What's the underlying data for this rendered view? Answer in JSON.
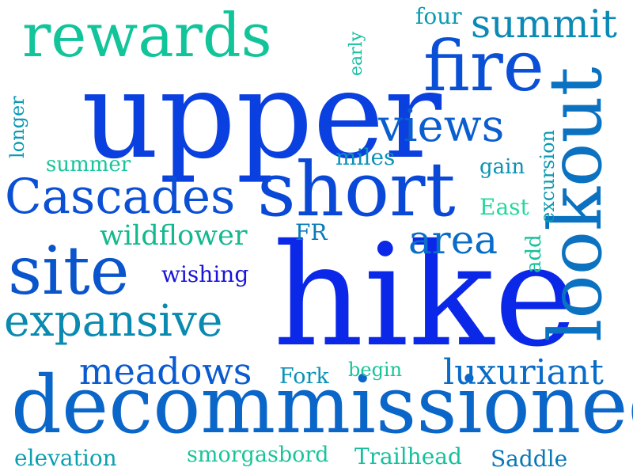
{
  "word_cloud": {
    "words": [
      {
        "text": "upper",
        "color": "#0a3fe0"
      },
      {
        "text": "hike",
        "color": "#0b28e8"
      },
      {
        "text": "decommissioned",
        "color": "#0a66c8"
      },
      {
        "text": "short",
        "color": "#0a48d8"
      },
      {
        "text": "lookout",
        "color": "#0a72c0"
      },
      {
        "text": "rewards",
        "color": "#12c49a"
      },
      {
        "text": "fire",
        "color": "#0a50d6"
      },
      {
        "text": "site",
        "color": "#0a55cc"
      },
      {
        "text": "Cascades",
        "color": "#0a4fd4"
      },
      {
        "text": "expansive",
        "color": "#0a8ab0"
      },
      {
        "text": "views",
        "color": "#0a5ed0"
      },
      {
        "text": "summit",
        "color": "#0a8ab5"
      },
      {
        "text": "area",
        "color": "#0a6ec8"
      },
      {
        "text": "meadows",
        "color": "#0a5ad0"
      },
      {
        "text": "luxuriant",
        "color": "#0a6cc8"
      },
      {
        "text": "wildflower",
        "color": "#14b88e"
      },
      {
        "text": "wishing",
        "color": "#1a14d8"
      },
      {
        "text": "four",
        "color": "#0a9ab0"
      },
      {
        "text": "early",
        "color": "#16bfa0"
      },
      {
        "text": "longer",
        "color": "#0a9ab5"
      },
      {
        "text": "summer",
        "color": "#18c49a"
      },
      {
        "text": "miles",
        "color": "#0a92b8"
      },
      {
        "text": "gain",
        "color": "#0a92b8"
      },
      {
        "text": "excursion",
        "color": "#0a98b0"
      },
      {
        "text": "East",
        "color": "#22d89a"
      },
      {
        "text": "FR",
        "color": "#0a7ab8"
      },
      {
        "text": "add",
        "color": "#16c09c"
      },
      {
        "text": "Fork",
        "color": "#0a92b8"
      },
      {
        "text": "begin",
        "color": "#18c49a"
      },
      {
        "text": "elevation",
        "color": "#0aa0b0"
      },
      {
        "text": "smorgasbord",
        "color": "#18c49a"
      },
      {
        "text": "Trailhead",
        "color": "#16c09c"
      },
      {
        "text": "Saddle",
        "color": "#0a78b8"
      }
    ]
  }
}
